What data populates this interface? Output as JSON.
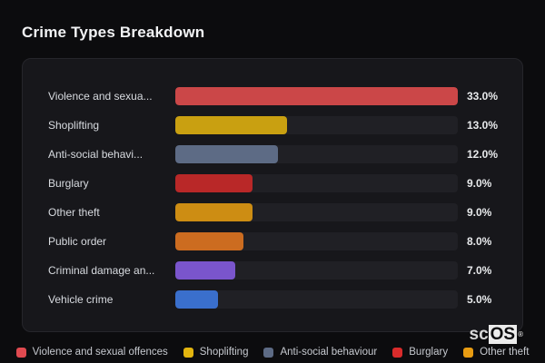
{
  "page": {
    "title": "Crime Types Breakdown",
    "background": "#0c0c0e",
    "panel_background": "#17171b",
    "track_color": "#202025"
  },
  "chart_data": {
    "type": "bar",
    "orientation": "horizontal",
    "title": "Crime Types Breakdown",
    "categories": [
      "Violence and sexua...",
      "Shoplifting",
      "Anti-social behavi...",
      "Burglary",
      "Other theft",
      "Public order",
      "Criminal damage an...",
      "Vehicle crime"
    ],
    "values": [
      33.0,
      13.0,
      12.0,
      9.0,
      9.0,
      8.0,
      7.0,
      5.0
    ],
    "value_labels": [
      "33.0%",
      "13.0%",
      "12.0%",
      "9.0%",
      "9.0%",
      "8.0%",
      "7.0%",
      "5.0%"
    ],
    "bar_colors": [
      "#cb4748",
      "#c9a011",
      "#5d6b85",
      "#b92828",
      "#cd8d13",
      "#cc6c20",
      "#7a55cc",
      "#3a6fcc"
    ],
    "max_value": 33.0,
    "value_suffix": "%",
    "grid": false,
    "legend_position": "bottom",
    "legend": [
      {
        "label": "Violence and sexual offences",
        "color": "#e04a50"
      },
      {
        "label": "Shoplifting",
        "color": "#e3b50f"
      },
      {
        "label": "Anti-social behaviour",
        "color": "#5d6b85"
      },
      {
        "label": "Burglary",
        "color": "#d92b2b"
      },
      {
        "label": "Other theft",
        "color": "#e89c12"
      }
    ]
  },
  "logo": {
    "prefix": "sc",
    "block": "OS",
    "registered_mark": "®"
  }
}
